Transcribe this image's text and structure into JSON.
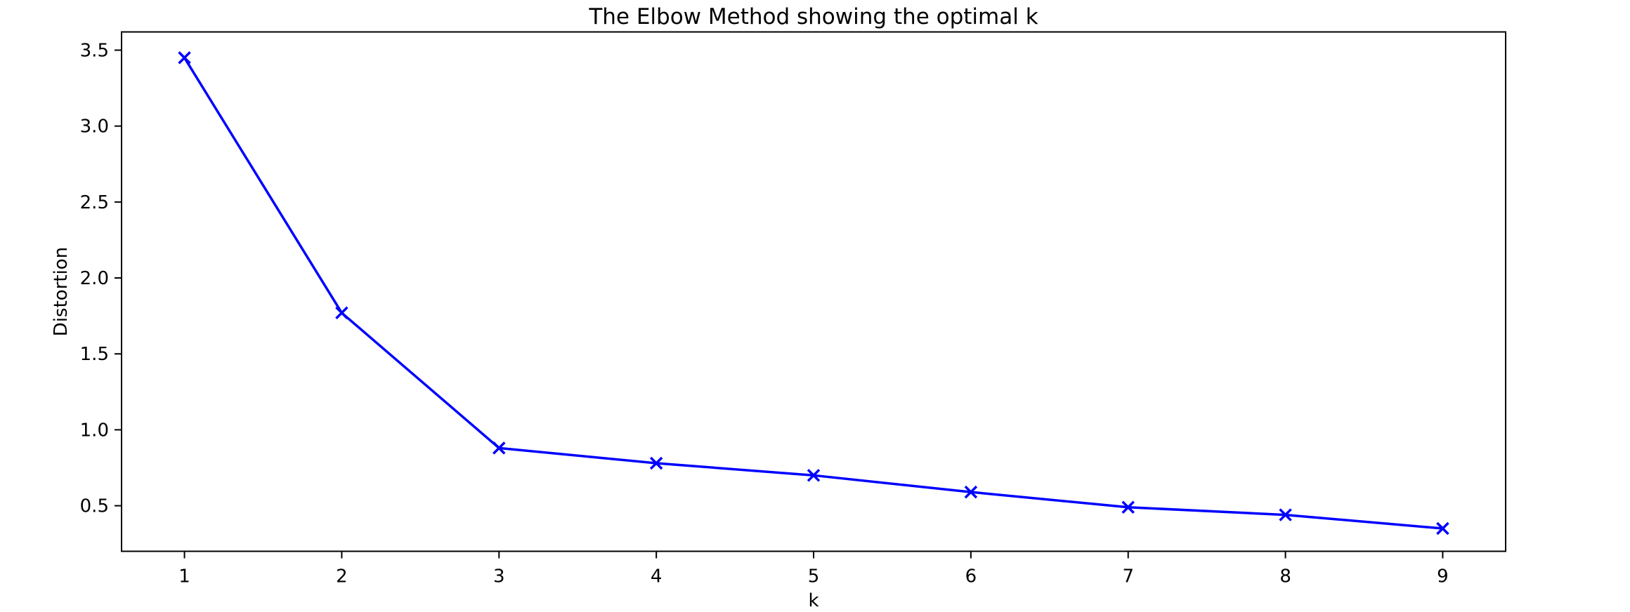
{
  "chart_data": {
    "type": "line",
    "title": "The Elbow Method showing the optimal k",
    "xlabel": "k",
    "ylabel": "Distortion",
    "x": [
      1,
      2,
      3,
      4,
      5,
      6,
      7,
      8,
      9
    ],
    "series": [
      {
        "name": "distortion",
        "values": [
          3.45,
          1.77,
          0.88,
          0.78,
          0.7,
          0.59,
          0.49,
          0.44,
          0.35
        ],
        "color": "#0000ff",
        "marker": "x",
        "line_width": 3.5
      }
    ],
    "xlim": [
      0.6,
      9.4
    ],
    "ylim": [
      0.2,
      3.62
    ],
    "x_ticks": [
      1,
      2,
      3,
      4,
      5,
      6,
      7,
      8,
      9
    ],
    "y_ticks": [
      0.5,
      1.0,
      1.5,
      2.0,
      2.5,
      3.0,
      3.5
    ],
    "grid": false,
    "legend_position": "none",
    "colors": {
      "line": "#0000ff",
      "axis": "#000000",
      "text": "#000000",
      "background": "#ffffff"
    }
  }
}
